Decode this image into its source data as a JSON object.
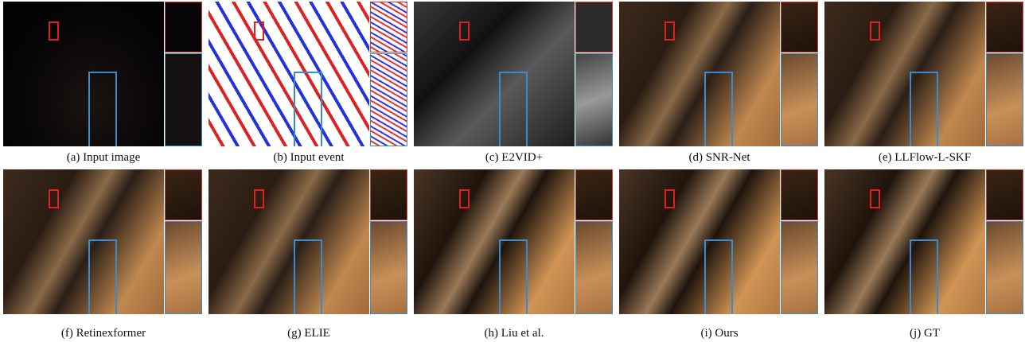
{
  "figure": {
    "panels": [
      {
        "caption": "(a) Input image"
      },
      {
        "caption": "(b) Input event"
      },
      {
        "caption": "(c) E2VID+"
      },
      {
        "caption": "(d) SNR-Net"
      },
      {
        "caption": "(e) LLFlow-L-SKF"
      },
      {
        "caption": "(f) Retinexformer"
      },
      {
        "caption": "(g) ELIE"
      },
      {
        "caption": "(h) Liu et al."
      },
      {
        "caption": "(i) Ours"
      },
      {
        "caption": "(j) GT"
      }
    ]
  }
}
